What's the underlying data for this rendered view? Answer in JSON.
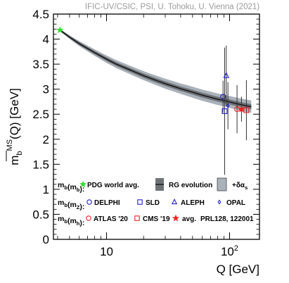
{
  "credit": "IFIC-UV/CSIC, PSI, U. Tohoku, U. Vienna (2021)",
  "colors": {
    "band_outer": "#a9b1b9",
    "band_inner": "#6f7378",
    "curve": "#111111",
    "pdg": "#33dd33",
    "delphi": "#2222cc",
    "sld": "#2222cc",
    "aleph": "#2222cc",
    "opal": "#2222cc",
    "atlas": "#ee2222",
    "cms": "#ee2222",
    "avg": "#ee2222",
    "errorbar": "#333333"
  },
  "chart_data": {
    "type": "scatter",
    "xlabel": "Q [GeV]",
    "ylabel": "m_b^{MS-bar}(Q) [GeV]",
    "xscale": "log",
    "xlim": [
      3.7,
      175
    ],
    "ylim": [
      0,
      4.5
    ],
    "x_ticks": [
      {
        "value": 10,
        "label": "10"
      },
      {
        "value": 100,
        "label": "10^2"
      }
    ],
    "y_ticks": [
      {
        "value": 0,
        "label": "0"
      },
      {
        "value": 0.5,
        "label": "0.5"
      },
      {
        "value": 1,
        "label": "1"
      },
      {
        "value": 1.5,
        "label": "1.5"
      },
      {
        "value": 2,
        "label": "2"
      },
      {
        "value": 2.5,
        "label": "2.5"
      },
      {
        "value": 3,
        "label": "3"
      },
      {
        "value": 3.5,
        "label": "3.5"
      },
      {
        "value": 4,
        "label": "4"
      },
      {
        "value": 4.5,
        "label": "4.5"
      }
    ],
    "rg_evolution": {
      "x": [
        4.18,
        5,
        6,
        8,
        10,
        12,
        15,
        20,
        25,
        30,
        40,
        50,
        60,
        80,
        91.19,
        110,
        130,
        150
      ],
      "y": [
        4.18,
        4.04,
        3.91,
        3.73,
        3.6,
        3.5,
        3.4,
        3.27,
        3.18,
        3.11,
        3.01,
        2.94,
        2.88,
        2.8,
        2.77,
        2.72,
        2.68,
        2.65
      ],
      "inner_halfwidth": [
        0.02,
        0.025,
        0.03,
        0.033,
        0.036,
        0.038,
        0.04,
        0.042,
        0.044,
        0.045,
        0.046,
        0.047,
        0.048,
        0.049,
        0.05,
        0.05,
        0.05,
        0.05
      ],
      "outer_halfwidth": [
        0.02,
        0.035,
        0.05,
        0.065,
        0.075,
        0.08,
        0.085,
        0.09,
        0.095,
        0.1,
        0.105,
        0.11,
        0.112,
        0.115,
        0.117,
        0.12,
        0.122,
        0.125
      ]
    },
    "points": [
      {
        "name": "PDG world avg.",
        "x": 4.18,
        "y": 4.18,
        "err": 0.03,
        "marker": "star-filled",
        "color_key": "pdg"
      },
      {
        "name": "DELPHI",
        "x": 88.5,
        "y": 2.85,
        "err": 0.32,
        "marker": "circle",
        "color_key": "delphi"
      },
      {
        "name": "SLD",
        "x": 91.2,
        "y": 2.56,
        "err": 1.27,
        "marker": "square",
        "color_key": "sld"
      },
      {
        "name": "ALEPH",
        "x": 94.0,
        "y": 3.27,
        "err": 0.6,
        "marker": "triangle",
        "color_key": "aleph"
      },
      {
        "name": "OPAL",
        "x": 97.0,
        "y": 2.67,
        "err": 0.47,
        "marker": "diamond",
        "color_key": "opal"
      },
      {
        "name": "ATLAS '20",
        "x": 115,
        "y": 2.6,
        "err": 0.48,
        "marker": "circle",
        "color_key": "atlas"
      },
      {
        "name": "avg.",
        "x": 125,
        "y": 2.6,
        "err": 0.25,
        "marker": "star-filled",
        "color_key": "avg"
      },
      {
        "name": "CMS '19",
        "x": 137,
        "y": 2.58,
        "err": 0.6,
        "marker": "square",
        "color_key": "cms"
      }
    ],
    "legend": {
      "row1": {
        "head": "m_b(m_b):",
        "items": [
          {
            "label": "PDG world avg.",
            "marker": "star-filled",
            "color_key": "pdg"
          },
          {
            "label": "RG evolution",
            "marker": "band-line"
          },
          {
            "label": "+δα_s",
            "marker": "band-outer"
          }
        ]
      },
      "row2": {
        "head": "m_b(m_Z):",
        "items": [
          {
            "label": "DELPHI",
            "marker": "circle",
            "color_key": "delphi"
          },
          {
            "label": "SLD",
            "marker": "square",
            "color_key": "sld"
          },
          {
            "label": "ALEPH",
            "marker": "triangle",
            "color_key": "aleph"
          },
          {
            "label": "OPAL",
            "marker": "diamond",
            "color_key": "opal"
          }
        ]
      },
      "row3": {
        "head": "m_b(m_h):",
        "items": [
          {
            "label": "ATLAS '20",
            "marker": "circle",
            "color_key": "atlas"
          },
          {
            "label": "CMS '19",
            "marker": "square",
            "color_key": "cms"
          },
          {
            "label": "avg.",
            "marker": "star-filled",
            "color_key": "avg"
          },
          {
            "label": "PRL128, 122001",
            "marker": "none"
          }
        ]
      }
    }
  }
}
